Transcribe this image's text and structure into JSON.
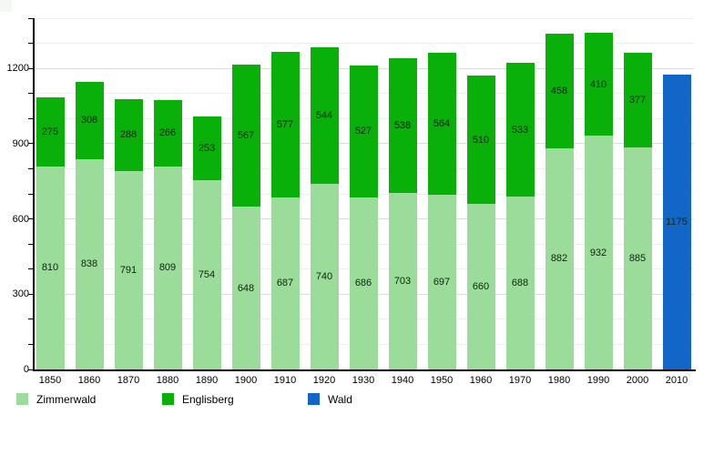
{
  "chart_data": {
    "type": "bar",
    "stacked": true,
    "title": "",
    "categories": [
      "1850",
      "1860",
      "1870",
      "1880",
      "1890",
      "1900",
      "1910",
      "1920",
      "1930",
      "1940",
      "1950",
      "1960",
      "1970",
      "1980",
      "1990",
      "2000",
      "2010"
    ],
    "series": [
      {
        "name": "Zimmerwald",
        "color": "#9bdc9b",
        "values": [
          810,
          838,
          791,
          809,
          754,
          648,
          687,
          740,
          686,
          703,
          697,
          660,
          688,
          882,
          932,
          885,
          null
        ]
      },
      {
        "name": "Englisberg",
        "color": "#09b009",
        "values": [
          275,
          308,
          288,
          266,
          253,
          567,
          577,
          544,
          527,
          538,
          564,
          510,
          533,
          458,
          410,
          377,
          null
        ]
      },
      {
        "name": "Wald",
        "color": "#1266c8",
        "values": [
          null,
          null,
          null,
          null,
          null,
          null,
          null,
          null,
          null,
          null,
          null,
          null,
          null,
          null,
          null,
          null,
          1175
        ]
      }
    ],
    "totals": [
      1085,
      1146,
      1079,
      1075,
      1007,
      1215,
      1264,
      1284,
      1213,
      1241,
      1261,
      1170,
      1221,
      1340,
      1342,
      1262,
      1175
    ],
    "xlabel": "",
    "ylabel": "",
    "ylim": [
      0,
      1400
    ],
    "ytick_labels": [
      "0",
      "300",
      "600",
      "900",
      "1200"
    ],
    "yticks_labeled": [
      0,
      300,
      600,
      900,
      1200
    ],
    "minor_grid_step": 100,
    "major_grid_step": 300,
    "grid": true,
    "value_labels_shown": true,
    "legend_position": "bottom",
    "axis_color": "#000000",
    "major_grid_color": "#dcdcdc",
    "minor_grid_color": "#efefef",
    "background_color": "#ffffff"
  }
}
